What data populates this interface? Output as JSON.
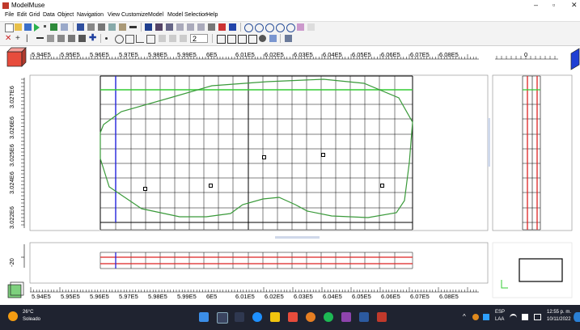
{
  "window": {
    "title": "ModelMuse",
    "minimize_glyph": "–",
    "maximize_glyph": "▫",
    "close_glyph": "✕"
  },
  "menu": [
    "File",
    "Edit",
    "Grid",
    "Data",
    "Object",
    "Navigation",
    "View",
    "Customize",
    "Model",
    "Model Selection",
    "Help"
  ],
  "toolbar": {
    "zoom_level_value": "2"
  },
  "top_ruler": {
    "labels": [
      "5.94E5",
      "5.95E5",
      "5.96E5",
      "5.97E5",
      "5.98E5",
      "5.99E5",
      "6E5",
      "6.01E5",
      "6.02E5",
      "6.03E5",
      "6.04E5",
      "6.05E5",
      "6.06E5",
      "6.07E5",
      "6.08E5"
    ],
    "side_label": "0"
  },
  "bottom_ruler": {
    "labels": [
      "5.94E5",
      "5.95E5",
      "5.96E5",
      "5.97E5",
      "5.98E5",
      "5.99E5",
      "6E5",
      "6.01E5",
      "6.02E5",
      "6.03E5",
      "6.04E5",
      "6.05E5",
      "6.06E5",
      "6.07E5",
      "6.08E5"
    ]
  },
  "left_ruler": {
    "labels": [
      "3.022E6",
      "3.024E6",
      "3.025E6",
      "3.026E6",
      "3.027E6"
    ]
  },
  "front_ruler": {
    "label": "-20"
  },
  "colors": {
    "boundary": "#3a9a3a",
    "grid": "#000000",
    "blue_line": "#2222dd",
    "red_line": "#dd2222",
    "green_line": "#33cc33"
  },
  "taskbar": {
    "weather_temp": "26°C",
    "weather_desc": "Soleado",
    "lang_top": "ESP",
    "lang_bottom": "LAA",
    "time": "12:55 p. m.",
    "date": "10/11/2022"
  }
}
